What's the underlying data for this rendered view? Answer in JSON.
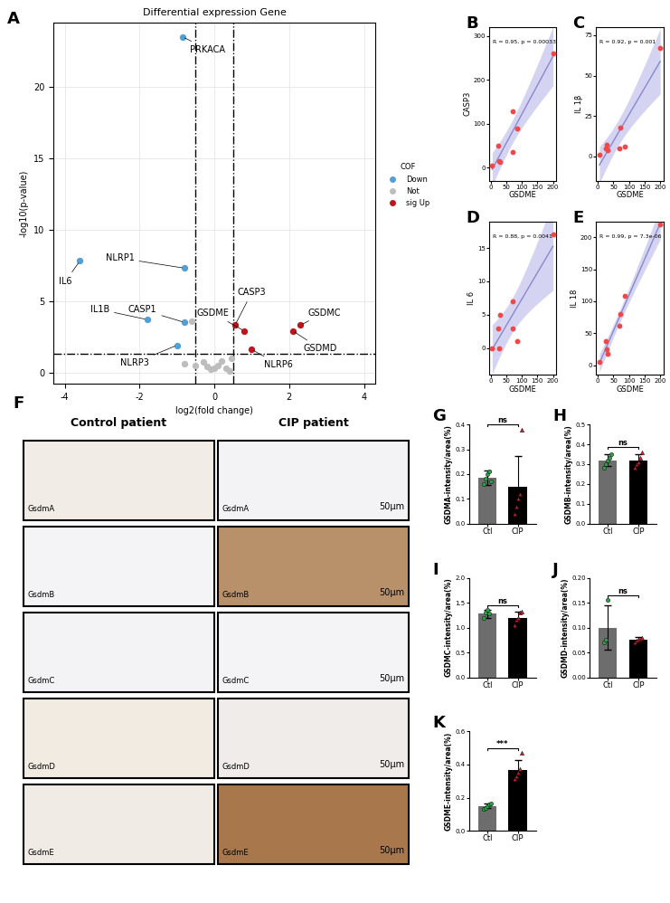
{
  "chart_data": [
    {
      "panel": "A",
      "type": "volcano",
      "title": "Differential expression Gene",
      "xlabel": "log2(fold change)",
      "ylabel": "-log10(p-value)",
      "xlim": [
        -4.3,
        4.3
      ],
      "ylim": [
        -0.8,
        24.5
      ],
      "xticks": [
        -4,
        -2,
        0,
        2,
        4
      ],
      "yticks": [
        0,
        5,
        10,
        15,
        20
      ],
      "threshold_x": [
        -0.5,
        0.5
      ],
      "threshold_y": 1.3,
      "legend": "center left",
      "legend_title": "COF",
      "series": [
        {
          "name": "Down",
          "color": "#4f9fd8",
          "x": [
            -0.85,
            -3.6,
            -0.8,
            -1.8,
            -0.8,
            -1.0
          ],
          "y": [
            23.5,
            7.8,
            7.3,
            3.7,
            3.5,
            1.9
          ],
          "labels": [
            "PRKACA",
            "IL6",
            "NLRP1",
            "IL1B",
            "CASP1",
            "NLRP3"
          ]
        },
        {
          "name": "Not",
          "color": "#bdbdbd",
          "x": [
            -0.6,
            -0.8,
            -0.5,
            -0.3,
            -0.2,
            -0.1,
            0.0,
            0.1,
            0.2,
            0.3,
            0.4,
            0.45
          ],
          "y": [
            3.6,
            0.6,
            0.5,
            0.7,
            0.4,
            0.2,
            0.3,
            0.5,
            0.8,
            0.3,
            0.1,
            1.0
          ],
          "labels": [
            null,
            null,
            null,
            null,
            null,
            null,
            null,
            null,
            null,
            null,
            null,
            null
          ]
        },
        {
          "name": "sig Up",
          "color": "#c0141b",
          "x": [
            0.55,
            0.8,
            2.3,
            2.1,
            1.0
          ],
          "y": [
            3.3,
            2.9,
            3.3,
            2.9,
            1.6
          ],
          "labels": [
            "CASP3",
            "GSDME",
            "GSDMC",
            "GSDMD",
            "NLRP6"
          ]
        }
      ]
    },
    {
      "panel": "B",
      "type": "regression",
      "xlabel": "GSDME",
      "ylabel": "CASP3",
      "annotation": "R = 0.95, p = 0.00033",
      "color": "#f04848",
      "x": [
        5,
        25,
        27,
        30,
        70,
        72,
        85,
        200
      ],
      "values": [
        5,
        50,
        15,
        12,
        35,
        128,
        88,
        260
      ],
      "xlim": [
        -5,
        210
      ],
      "ylim": [
        -30,
        320
      ],
      "xticks": [
        0,
        50,
        100,
        150,
        200
      ],
      "yticks": [
        0,
        100,
        200,
        300
      ]
    },
    {
      "panel": "C",
      "type": "regression",
      "xlabel": "GSDME",
      "ylabel": "IL 1β",
      "annotation": "R = 0.92, p = 0.001",
      "color": "#f04848",
      "x": [
        5,
        25,
        27,
        30,
        70,
        72,
        85,
        200
      ],
      "values": [
        1,
        5,
        7,
        4,
        5,
        18,
        6,
        67
      ],
      "xlim": [
        -5,
        210
      ],
      "ylim": [
        -15,
        80
      ],
      "xticks": [
        0,
        50,
        100,
        150,
        200
      ],
      "yticks": [
        0,
        25,
        50,
        75
      ]
    },
    {
      "panel": "D",
      "type": "regression",
      "xlabel": "GSDME",
      "ylabel": "IL 6",
      "annotation": "R = 0.88, p = 0.0041",
      "color": "#f04848",
      "x": [
        5,
        25,
        27,
        30,
        70,
        72,
        85,
        200
      ],
      "values": [
        0,
        3,
        0,
        5,
        7,
        3,
        1,
        17
      ],
      "xlim": [
        -5,
        210
      ],
      "ylim": [
        -4,
        19
      ],
      "xticks": [
        0,
        50,
        100,
        150,
        200
      ],
      "yticks": [
        0,
        5,
        10,
        15
      ]
    },
    {
      "panel": "E",
      "type": "regression",
      "xlabel": "GSDME",
      "ylabel": "IL 18",
      "annotation": "R = 0.99, p = 7.3e-06",
      "color": "#f04848",
      "x": [
        5,
        25,
        27,
        30,
        70,
        72,
        85,
        200
      ],
      "values": [
        5,
        38,
        25,
        18,
        62,
        80,
        108,
        220
      ],
      "xlim": [
        -5,
        210
      ],
      "ylim": [
        -15,
        225
      ],
      "xticks": [
        0,
        50,
        100,
        150,
        200
      ],
      "yticks": [
        0,
        50,
        100,
        150,
        200
      ]
    },
    {
      "panel": "F",
      "type": "image",
      "columns": [
        "Control patient",
        "CIP patient"
      ],
      "rows": [
        "GsdmA",
        "GsdmB",
        "GsdmC",
        "GsdmD",
        "GsdmE"
      ],
      "scale_bar": "50μm"
    },
    {
      "panel": "G",
      "type": "bar",
      "ylabel": "GSDMA-intensity/area(%)",
      "categories": [
        "Ctl",
        "CIP"
      ],
      "values": [
        0.185,
        0.148
      ],
      "errors": [
        0.03,
        0.125
      ],
      "colors": [
        "#6d6d6d",
        "#000000"
      ],
      "points": [
        [
          0.16,
          0.18,
          0.2,
          0.21,
          0.17
        ],
        [
          0.04,
          0.07,
          0.1,
          0.12,
          0.38
        ]
      ],
      "annotation": "ns",
      "ylim": [
        0,
        0.4
      ],
      "yticks": [
        {
          "value": 0,
          "label": "0.0"
        },
        0.1,
        0.2,
        0.3,
        0.4
      ]
    },
    {
      "panel": "H",
      "type": "bar",
      "ylabel": "GSDMB-intensity/area(%)",
      "categories": [
        "Ctl",
        "CIP"
      ],
      "values": [
        0.32,
        0.32
      ],
      "errors": [
        0.03,
        0.03
      ],
      "colors": [
        "#6d6d6d",
        "#000000"
      ],
      "points": [
        [
          0.28,
          0.3,
          0.32,
          0.33,
          0.35
        ],
        [
          0.28,
          0.3,
          0.31,
          0.33,
          0.36
        ]
      ],
      "annotation": "ns",
      "ylim": [
        0,
        0.5
      ],
      "yticks": [
        {
          "value": 0,
          "label": "0.0"
        },
        0.1,
        0.2,
        0.3,
        0.4,
        0.5
      ]
    },
    {
      "panel": "I",
      "type": "bar",
      "ylabel": "GSDMC-intensity/area(%)",
      "categories": [
        "Ctl",
        "CIP"
      ],
      "values": [
        1.28,
        1.2
      ],
      "errors": [
        0.08,
        0.12
      ],
      "colors": [
        "#6d6d6d",
        "#000000"
      ],
      "points": [
        [
          1.2,
          1.3,
          1.35,
          1.28
        ],
        [
          1.05,
          1.15,
          1.2,
          1.3,
          1.32
        ]
      ],
      "annotation": "ns",
      "ylim": [
        0,
        2.0
      ],
      "yticks": [
        {
          "value": 0,
          "label": "0.0"
        },
        0.5,
        {
          "value": 1,
          "label": "1.0"
        },
        1.5,
        {
          "value": 2,
          "label": "2.0"
        }
      ]
    },
    {
      "panel": "J",
      "type": "bar",
      "ylabel": "GSDMD-intensity/area(%)",
      "categories": [
        "Ctl",
        "CIP"
      ],
      "values": [
        0.1,
        0.075
      ],
      "errors": [
        0.045,
        0.006
      ],
      "colors": [
        "#6d6d6d",
        "#000000"
      ],
      "points": [
        [
          0.07,
          0.075,
          0.155
        ],
        [
          0.07,
          0.073,
          0.075,
          0.078,
          0.08
        ]
      ],
      "annotation": "ns",
      "ylim": [
        0,
        0.2
      ],
      "yticks": [
        {
          "value": 0,
          "label": "0.00"
        },
        0.05,
        {
          "value": 0.1,
          "label": "0.10"
        },
        0.15,
        {
          "value": 0.2,
          "label": "0.20"
        }
      ]
    },
    {
      "panel": "K",
      "type": "bar",
      "ylabel": "GSDME-intensity/area(%)",
      "categories": [
        "Ctl",
        "CIP"
      ],
      "values": [
        0.15,
        0.365
      ],
      "errors": [
        0.015,
        0.06
      ],
      "colors": [
        "#6d6d6d",
        "#000000"
      ],
      "points": [
        [
          0.13,
          0.14,
          0.15,
          0.16,
          0.165
        ],
        [
          0.31,
          0.33,
          0.35,
          0.37,
          0.47
        ]
      ],
      "annotation": "***",
      "ylim": [
        0,
        0.6
      ],
      "yticks": [
        {
          "value": 0,
          "label": "0.0"
        },
        0.2,
        0.4,
        0.6
      ]
    }
  ]
}
